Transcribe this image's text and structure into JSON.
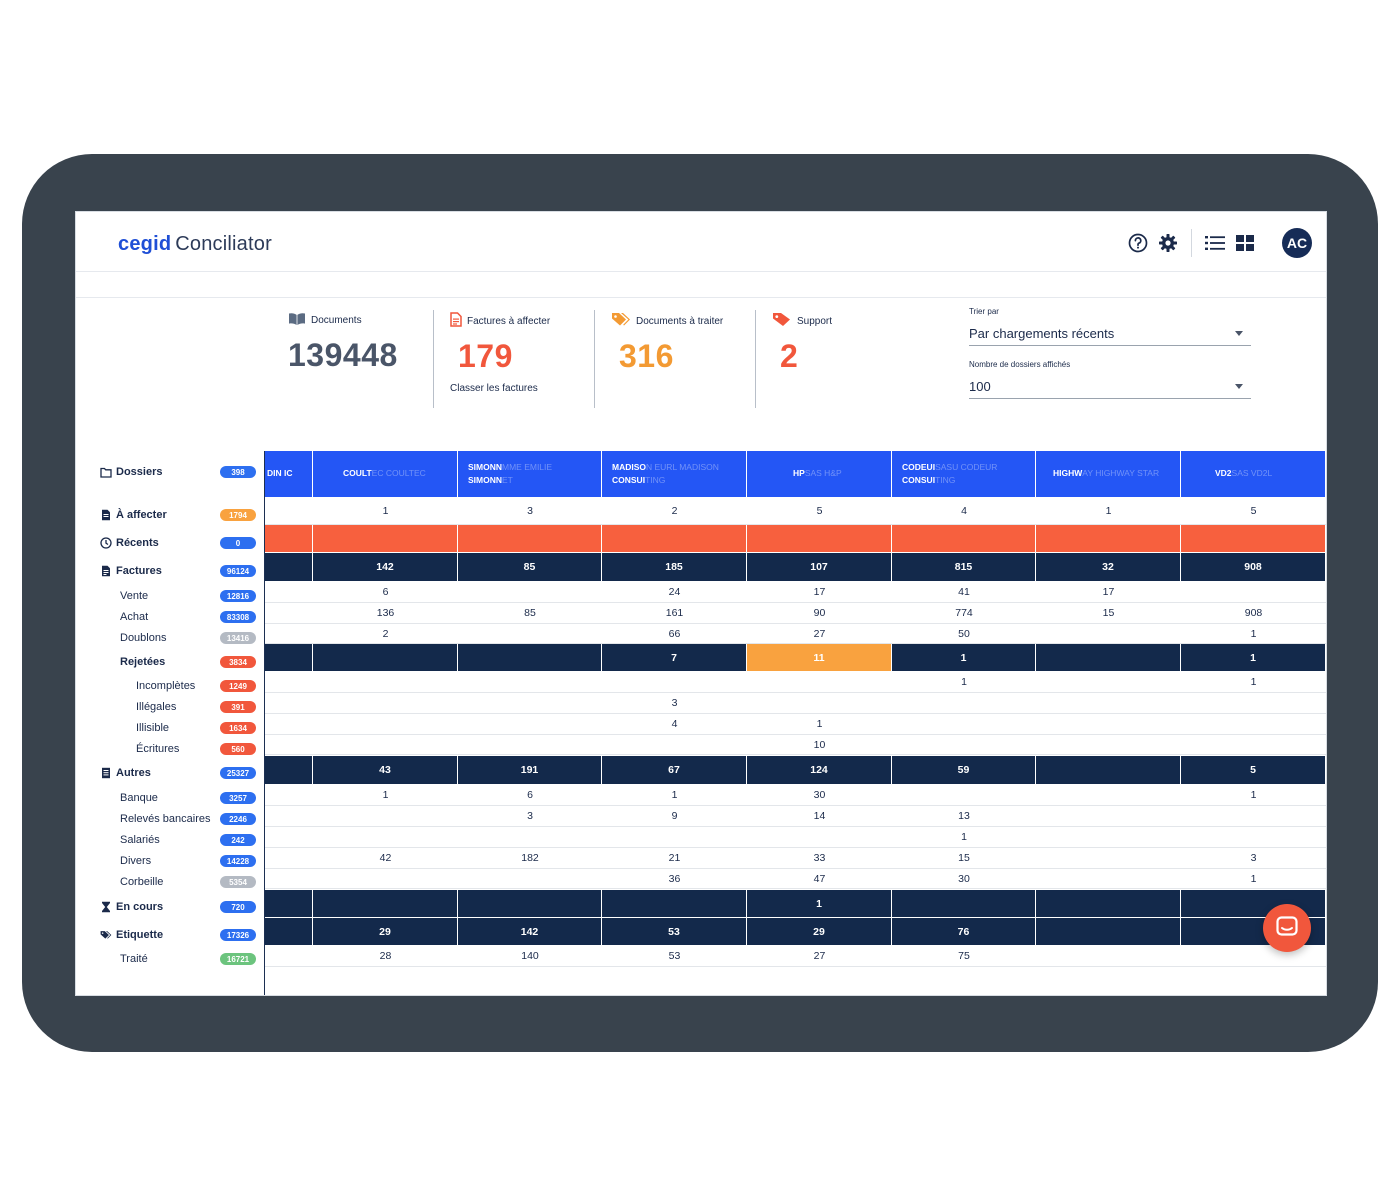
{
  "app": {
    "brand": "cegid",
    "product": "Conciliator",
    "avatar_initials": "AC"
  },
  "header_icons": [
    "help-circle-icon",
    "gear-icon",
    "list-view-icon",
    "grid-view-icon"
  ],
  "stats": [
    {
      "label": "Documents",
      "value": "139448",
      "sub": "",
      "color": "#4a5568",
      "icon": "book-icon"
    },
    {
      "label": "Factures à affecter",
      "value": "179",
      "sub": "Classer les factures",
      "color": "#f1573c",
      "icon": "document-icon"
    },
    {
      "label": "Documents à traiter",
      "value": "316",
      "sub": "",
      "color": "#f39a33",
      "icon": "tags-icon"
    },
    {
      "label": "Support",
      "value": "2",
      "sub": "",
      "color": "#f1573c",
      "icon": "tag-icon"
    }
  ],
  "sort": {
    "sort_label": "Trier par",
    "sort_value": "Par chargements récents",
    "count_label": "Nombre de dossiers affichés",
    "count_value": "100"
  },
  "sidebar": [
    {
      "label": "Dossiers",
      "badge": "398",
      "level": "head",
      "icon": "folder-icon",
      "badge_color": "#2d6ff0"
    },
    {
      "label": "À affecter",
      "badge": "1794",
      "level": "head",
      "icon": "document-icon",
      "badge_color": "#f9a23f"
    },
    {
      "label": "Récents",
      "badge": "0",
      "level": "head",
      "icon": "clock-icon",
      "badge_color": "#2d6ff0"
    },
    {
      "label": "Factures",
      "badge": "96124",
      "level": "head",
      "icon": "invoice-icon",
      "badge_color": "#2d6ff0"
    },
    {
      "label": "Vente",
      "badge": "12816",
      "level": "lvl1",
      "badge_color": "#2d6ff0"
    },
    {
      "label": "Achat",
      "badge": "83308",
      "level": "lvl1",
      "badge_color": "#2d6ff0"
    },
    {
      "label": "Doublons",
      "badge": "13416",
      "level": "lvl1",
      "badge_color": "#b4bac3"
    },
    {
      "label": "Rejetées",
      "badge": "3834",
      "level": "lvl1b",
      "badge_color": "#f1573c"
    },
    {
      "label": "Incomplètes",
      "badge": "1249",
      "level": "lvl2",
      "badge_color": "#f1573c"
    },
    {
      "label": "Illégales",
      "badge": "391",
      "level": "lvl2",
      "badge_color": "#f1573c"
    },
    {
      "label": "Illisible",
      "badge": "1634",
      "level": "lvl2",
      "badge_color": "#f1573c"
    },
    {
      "label": "Écritures",
      "badge": "560",
      "level": "lvl2",
      "badge_color": "#f1573c"
    },
    {
      "label": "Autres",
      "badge": "25327",
      "level": "head",
      "icon": "list-doc-icon",
      "badge_color": "#2d6ff0"
    },
    {
      "label": "Banque",
      "badge": "3257",
      "level": "lvl1",
      "badge_color": "#2d6ff0"
    },
    {
      "label": "Relevés bancaires",
      "badge": "2246",
      "level": "lvl1",
      "badge_color": "#2d6ff0"
    },
    {
      "label": "Salariés",
      "badge": "242",
      "level": "lvl1",
      "badge_color": "#2d6ff0"
    },
    {
      "label": "Divers",
      "badge": "14228",
      "level": "lvl1",
      "badge_color": "#2d6ff0"
    },
    {
      "label": "Corbeille",
      "badge": "5354",
      "level": "lvl1",
      "badge_color": "#b4bac3"
    },
    {
      "label": "En cours",
      "badge": "720",
      "level": "head",
      "icon": "hourglass-icon",
      "badge_color": "#2d6ff0"
    },
    {
      "label": "Etiquette",
      "badge": "17326",
      "level": "head",
      "icon": "tags-icon",
      "badge_color": "#2d6ff0"
    },
    {
      "label": "Traité",
      "badge": "16721",
      "level": "lvl1",
      "badge_color": "#6cc47e"
    }
  ],
  "columns": [
    {
      "line1": "DIN IC",
      "ghost1": "",
      "line2": "",
      "ghost2": ""
    },
    {
      "line1": "COULT",
      "ghost1": "EC COULTEC",
      "line2": "",
      "ghost2": ""
    },
    {
      "line1": "SIMONN",
      "ghost1": "MME EMILIE",
      "line2": "SIMONN",
      "ghost2": "ET"
    },
    {
      "line1": "MADISO",
      "ghost1": "N EURL MADISON",
      "line2": "CONSUI",
      "ghost2": "TING"
    },
    {
      "line1": "HP",
      "ghost1": "SAS H&P",
      "line2": "",
      "ghost2": ""
    },
    {
      "line1": "CODEUI",
      "ghost1": "SASU CODEUR",
      "line2": "CONSUI",
      "ghost2": "TING"
    },
    {
      "line1": "HIGHW",
      "ghost1": "AY HIGHWAY STAR",
      "line2": "",
      "ghost2": ""
    },
    {
      "line1": "VD2",
      "ghost1": "SAS VD2L",
      "line2": "",
      "ghost2": ""
    }
  ],
  "rows": [
    {
      "type": "light",
      "cells": [
        "",
        "1",
        "3",
        "2",
        "5",
        "4",
        "1",
        "5"
      ]
    },
    {
      "type": "orange",
      "cells": [
        "",
        "",
        "",
        "",
        "",
        "",
        "",
        ""
      ]
    },
    {
      "type": "dark",
      "cells": [
        "",
        "142",
        "85",
        "185",
        "107",
        "815",
        "32",
        "908"
      ]
    },
    {
      "type": "light",
      "cells": [
        "",
        "6",
        "",
        "24",
        "17",
        "41",
        "17",
        ""
      ]
    },
    {
      "type": "light",
      "cells": [
        "",
        "136",
        "85",
        "161",
        "90",
        "774",
        "15",
        "908"
      ]
    },
    {
      "type": "light",
      "cells": [
        "",
        "2",
        "",
        "66",
        "27",
        "50",
        "",
        "1"
      ]
    },
    {
      "type": "dark",
      "cells": [
        "",
        "",
        "",
        "7",
        "11",
        "1",
        "",
        "1"
      ],
      "highlight": 4
    },
    {
      "type": "light",
      "cells": [
        "",
        "",
        "",
        "",
        "",
        "1",
        "",
        "1"
      ]
    },
    {
      "type": "light",
      "cells": [
        "",
        "",
        "",
        "3",
        "",
        "",
        "",
        ""
      ]
    },
    {
      "type": "light",
      "cells": [
        "",
        "",
        "",
        "4",
        "1",
        "",
        "",
        ""
      ]
    },
    {
      "type": "light",
      "cells": [
        "",
        "",
        "",
        "",
        "10",
        "",
        "",
        ""
      ]
    },
    {
      "type": "dark",
      "cells": [
        "",
        "43",
        "191",
        "67",
        "124",
        "59",
        "",
        "5"
      ]
    },
    {
      "type": "light",
      "cells": [
        "",
        "1",
        "6",
        "1",
        "30",
        "",
        "",
        "1"
      ]
    },
    {
      "type": "light",
      "cells": [
        "",
        "",
        "3",
        "9",
        "14",
        "13",
        "",
        ""
      ]
    },
    {
      "type": "light",
      "cells": [
        "",
        "",
        "",
        "",
        "",
        "1",
        "",
        ""
      ]
    },
    {
      "type": "light",
      "cells": [
        "",
        "42",
        "182",
        "21",
        "33",
        "15",
        "",
        "3"
      ]
    },
    {
      "type": "light",
      "cells": [
        "",
        "",
        "",
        "36",
        "47",
        "30",
        "",
        "1"
      ]
    },
    {
      "type": "dark",
      "cells": [
        "",
        "",
        "",
        "",
        "1",
        "",
        "",
        ""
      ]
    },
    {
      "type": "dark",
      "cells": [
        "",
        "29",
        "142",
        "53",
        "29",
        "76",
        "",
        ""
      ]
    },
    {
      "type": "light",
      "cells": [
        "",
        "28",
        "140",
        "53",
        "27",
        "75",
        "",
        ""
      ]
    }
  ]
}
